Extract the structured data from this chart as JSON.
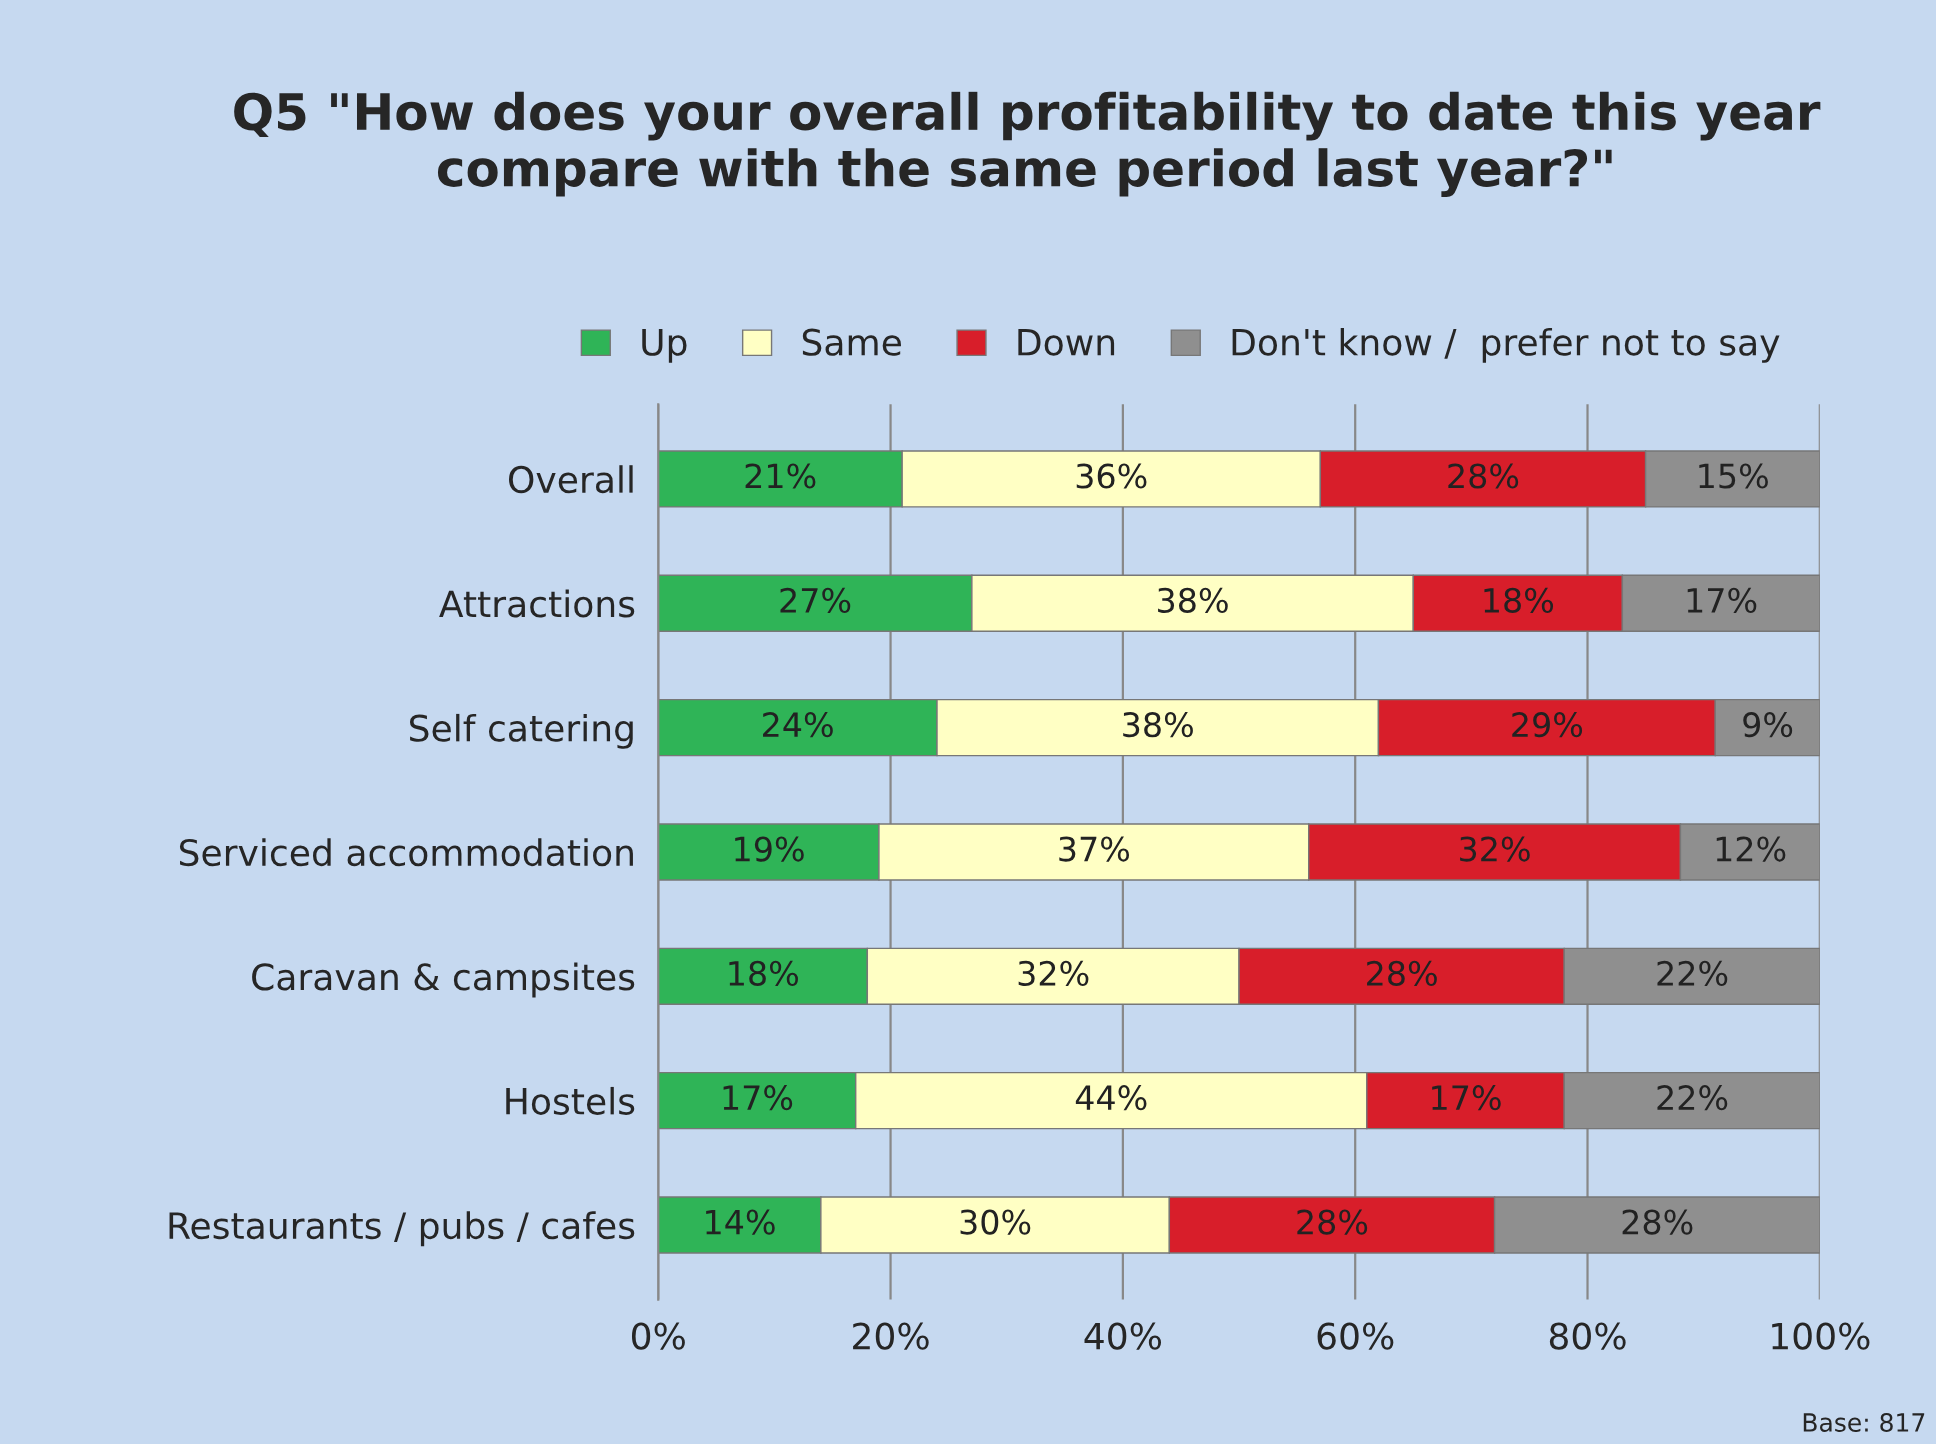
{
  "chart_data": {
    "type": "bar",
    "orientation": "horizontal",
    "stacked": true,
    "title": "Q5 \"How does your overall profitability to date this year compare with the same period last year?\"",
    "categories": [
      "Overall",
      "Attractions",
      "Self catering",
      "Serviced accommodation",
      "Caravan & campsites",
      "Hostels",
      "Restaurants / pubs / cafes"
    ],
    "series": [
      {
        "name": "Up",
        "color": "#2fb457",
        "values": [
          21,
          27,
          24,
          19,
          18,
          17,
          14
        ],
        "value_labels": [
          "21%",
          "27%",
          "24%",
          "19%",
          "18%",
          "17%",
          "14%"
        ]
      },
      {
        "name": "Same",
        "color": "#ffffc4",
        "values": [
          36,
          38,
          38,
          37,
          32,
          44,
          30
        ],
        "value_labels": [
          "36%",
          "38%",
          "38%",
          "37%",
          "32%",
          "44%",
          "30%"
        ]
      },
      {
        "name": "Down",
        "color": "#d81e2a",
        "values": [
          28,
          18,
          29,
          32,
          28,
          17,
          28
        ],
        "value_labels": [
          "28%",
          "18%",
          "29%",
          "32%",
          "28%",
          "17%",
          "28%"
        ]
      },
      {
        "name": "Don't know /  prefer not to say",
        "color": "#8f8f8f",
        "values": [
          15,
          17,
          9,
          12,
          22,
          22,
          28
        ],
        "value_labels": [
          "15%",
          "17%",
          "9%",
          "12%",
          "22%",
          "22%",
          "28%"
        ]
      }
    ],
    "xlim": [
      0,
      100
    ],
    "xticks": [
      {
        "value": 0,
        "label": "0%"
      },
      {
        "value": 20,
        "label": "20%"
      },
      {
        "value": 40,
        "label": "40%"
      },
      {
        "value": 60,
        "label": "60%"
      },
      {
        "value": 80,
        "label": "80%"
      },
      {
        "value": 100,
        "label": "100%"
      }
    ],
    "grid": "x",
    "legend": "top",
    "annotations": [
      "Base: 817"
    ]
  }
}
